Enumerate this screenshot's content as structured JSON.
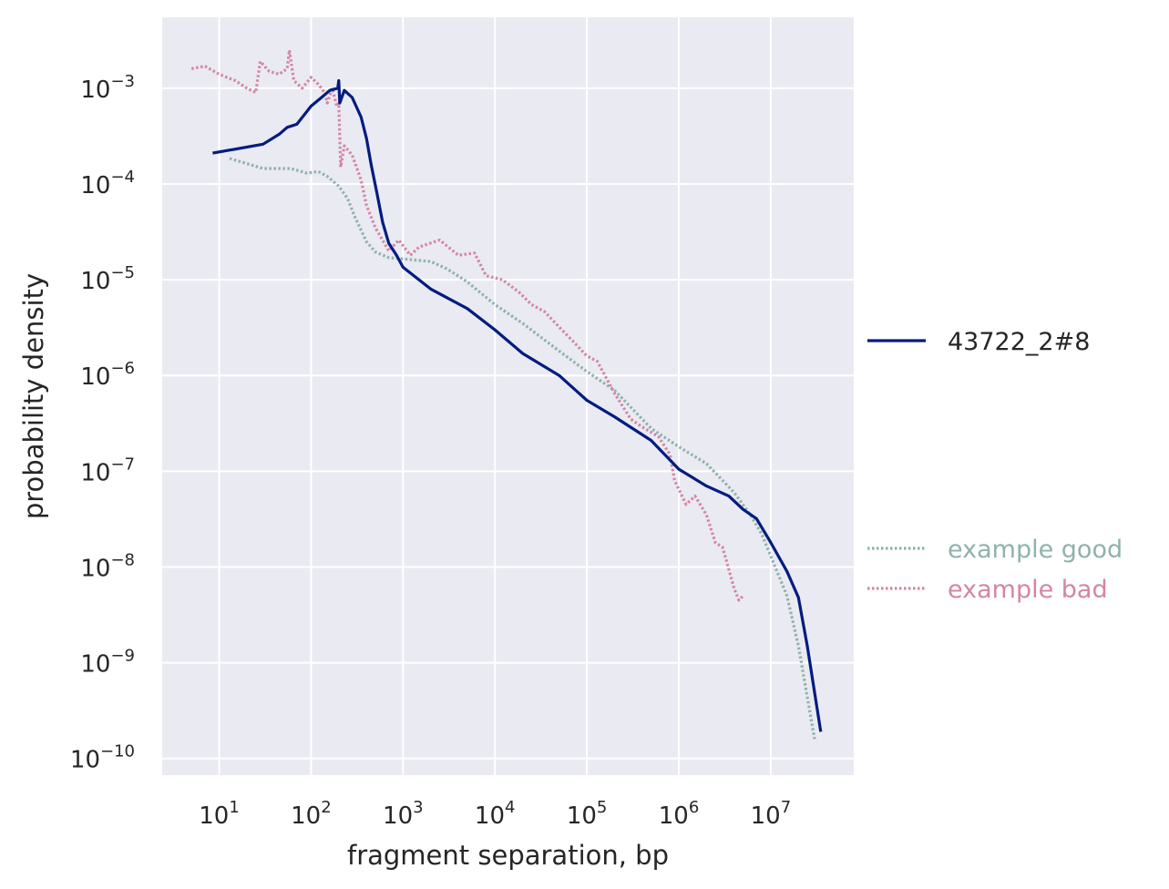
{
  "chart_data": {
    "type": "line",
    "xlabel": "fragment separation, bp",
    "ylabel": "probability density",
    "xscale": "log",
    "yscale": "log",
    "xlim": [
      2.4,
      80000000
    ],
    "ylim": [
      6.7e-11,
      0.0055
    ],
    "grid": true,
    "x_ticks": [
      {
        "base": "10",
        "exp": "1",
        "value": 10
      },
      {
        "base": "10",
        "exp": "2",
        "value": 100
      },
      {
        "base": "10",
        "exp": "3",
        "value": 1000
      },
      {
        "base": "10",
        "exp": "4",
        "value": 10000
      },
      {
        "base": "10",
        "exp": "5",
        "value": 100000
      },
      {
        "base": "10",
        "exp": "6",
        "value": 1000000
      },
      {
        "base": "10",
        "exp": "7",
        "value": 10000000
      }
    ],
    "y_ticks": [
      {
        "base": "10",
        "exp": "−3",
        "value": 0.001
      },
      {
        "base": "10",
        "exp": "−4",
        "value": 0.0001
      },
      {
        "base": "10",
        "exp": "−5",
        "value": 1e-05
      },
      {
        "base": "10",
        "exp": "−6",
        "value": 1e-06
      },
      {
        "base": "10",
        "exp": "−7",
        "value": 1e-07
      },
      {
        "base": "10",
        "exp": "−8",
        "value": 1e-08
      },
      {
        "base": "10",
        "exp": "−9",
        "value": 1e-09
      },
      {
        "base": "10",
        "exp": "−10",
        "value": 1e-10
      }
    ],
    "series": [
      {
        "name": "43722_2#8",
        "color": "#001c7f",
        "style": "solid",
        "points": [
          [
            8.5,
            0.00021
          ],
          [
            30,
            0.00026
          ],
          [
            45,
            0.00033
          ],
          [
            55,
            0.00039
          ],
          [
            70,
            0.00042
          ],
          [
            100,
            0.00065
          ],
          [
            130,
            0.0008
          ],
          [
            160,
            0.00095
          ],
          [
            195,
            0.001
          ],
          [
            200,
            0.0012
          ],
          [
            205,
            0.0007
          ],
          [
            230,
            0.00095
          ],
          [
            280,
            0.0008
          ],
          [
            350,
            0.0005
          ],
          [
            400,
            0.0003
          ],
          [
            450,
            0.00016
          ],
          [
            520,
            8e-05
          ],
          [
            600,
            4e-05
          ],
          [
            700,
            2.4e-05
          ],
          [
            850,
            1.8e-05
          ],
          [
            1000,
            1.35e-05
          ],
          [
            2000,
            8e-06
          ],
          [
            3000,
            6.5e-06
          ],
          [
            5000,
            5e-06
          ],
          [
            10000,
            3e-06
          ],
          [
            20000,
            1.7e-06
          ],
          [
            50000,
            1e-06
          ],
          [
            100000,
            5.5e-07
          ],
          [
            200000,
            3.7e-07
          ],
          [
            500000,
            2.1e-07
          ],
          [
            1000000,
            1.05e-07
          ],
          [
            2000000,
            7e-08
          ],
          [
            3500000,
            5.5e-08
          ],
          [
            5000000,
            4e-08
          ],
          [
            7000000,
            3.2e-08
          ],
          [
            10000000,
            1.8e-08
          ],
          [
            15000000,
            9e-09
          ],
          [
            20000000,
            4.8e-09
          ],
          [
            25000000,
            1.5e-09
          ],
          [
            35000000,
            1.9e-10
          ]
        ]
      },
      {
        "name": "example good",
        "color": "#8fb2ad",
        "style": "dotted",
        "points": [
          [
            13,
            0.000185
          ],
          [
            30,
            0.000145
          ],
          [
            60,
            0.000145
          ],
          [
            90,
            0.00013
          ],
          [
            120,
            0.000135
          ],
          [
            150,
            0.00012
          ],
          [
            200,
            9.5e-05
          ],
          [
            250,
            7e-05
          ],
          [
            300,
            4.5e-05
          ],
          [
            400,
            2.5e-05
          ],
          [
            500,
            1.95e-05
          ],
          [
            700,
            1.7e-05
          ],
          [
            1000,
            1.65e-05
          ],
          [
            2000,
            1.55e-05
          ],
          [
            3000,
            1.3e-05
          ],
          [
            5000,
            9.5e-06
          ],
          [
            10000,
            5.5e-06
          ],
          [
            20000,
            3.5e-06
          ],
          [
            50000,
            1.8e-06
          ],
          [
            100000,
            1.1e-06
          ],
          [
            200000,
            7e-07
          ],
          [
            500000,
            2.8e-07
          ],
          [
            1000000,
            1.8e-07
          ],
          [
            2000000,
            1.2e-07
          ],
          [
            4000000,
            6e-08
          ],
          [
            6000000,
            3.5e-08
          ],
          [
            8000000,
            2.2e-08
          ],
          [
            10000000,
            1.3e-08
          ],
          [
            15000000,
            5e-09
          ],
          [
            20000000,
            1.5e-09
          ],
          [
            30000000,
            1.6e-10
          ]
        ]
      },
      {
        "name": "example bad",
        "color": "#d386a5",
        "style": "dotted",
        "points": [
          [
            5,
            0.0016
          ],
          [
            7,
            0.0017
          ],
          [
            10,
            0.0014
          ],
          [
            15,
            0.0012
          ],
          [
            20,
            0.001
          ],
          [
            25,
            0.0009
          ],
          [
            28,
            0.0019
          ],
          [
            35,
            0.0015
          ],
          [
            45,
            0.0014
          ],
          [
            55,
            0.0016
          ],
          [
            58,
            0.0025
          ],
          [
            65,
            0.0012
          ],
          [
            80,
            0.001
          ],
          [
            100,
            0.0013
          ],
          [
            120,
            0.0011
          ],
          [
            140,
            0.0009
          ],
          [
            150,
            0.0007
          ],
          [
            170,
            0.001
          ],
          [
            190,
            0.00065
          ],
          [
            200,
            0.0007
          ],
          [
            210,
            0.00015
          ],
          [
            230,
            0.00025
          ],
          [
            280,
            0.0002
          ],
          [
            350,
            0.00011
          ],
          [
            400,
            6e-05
          ],
          [
            500,
            3.5e-05
          ],
          [
            700,
            2e-05
          ],
          [
            900,
            2.6e-05
          ],
          [
            1200,
            1.8e-05
          ],
          [
            1500,
            2.2e-05
          ],
          [
            2500,
            2.6e-05
          ],
          [
            4000,
            1.8e-05
          ],
          [
            6000,
            1.9e-05
          ],
          [
            8000,
            1.1e-05
          ],
          [
            12000,
            1e-05
          ],
          [
            18000,
            7.5e-06
          ],
          [
            25000,
            5.5e-06
          ],
          [
            35000,
            4.6e-06
          ],
          [
            50000,
            3.2e-06
          ],
          [
            70000,
            2.3e-06
          ],
          [
            100000,
            1.6e-06
          ],
          [
            130000,
            1.4e-06
          ],
          [
            200000,
            6.5e-07
          ],
          [
            300000,
            3.5e-07
          ],
          [
            400000,
            2.9e-07
          ],
          [
            600000,
            2.3e-07
          ],
          [
            800000,
            1.5e-07
          ],
          [
            900000,
            8e-08
          ],
          [
            1200000,
            4.5e-08
          ],
          [
            1500000,
            5.5e-08
          ],
          [
            2000000,
            3.5e-08
          ],
          [
            2500000,
            1.8e-08
          ],
          [
            3000000,
            1.6e-08
          ],
          [
            4000000,
            6e-09
          ],
          [
            4500000,
            4.5e-09
          ],
          [
            5000000,
            5e-09
          ]
        ]
      }
    ],
    "legend": [
      {
        "label": "43722_2#8",
        "color": "#001c7f",
        "style": "solid",
        "text_color": "#262626"
      },
      {
        "label": "example good",
        "color": "#8fb2ad",
        "style": "dotted",
        "text_color": "#8fb2ad"
      },
      {
        "label": "example bad",
        "color": "#d386a5",
        "style": "dotted",
        "text_color": "#d386a5"
      }
    ],
    "legend_placement": "outside-right"
  },
  "style": {
    "plot_bg": "#eaeaf2",
    "grid_color": "#ffffff",
    "text_color": "#262626"
  }
}
